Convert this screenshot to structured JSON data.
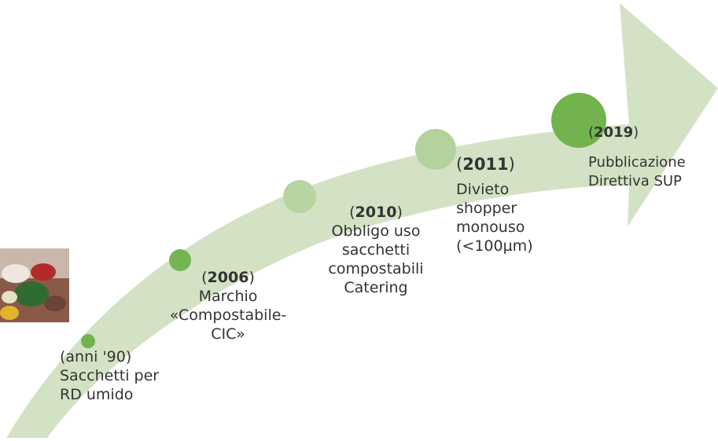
{
  "colors": {
    "arrow_fill": "#d3e2c4",
    "dot_dark": "#72b34e",
    "dot_mid": "#8cc068",
    "dot_light": "#b7d4a1",
    "text": "#333333"
  },
  "milestones": [
    {
      "year_open": "(anni '90)",
      "year": "",
      "year_close": "",
      "lines": [
        "Sacchetti per",
        "RD umido"
      ]
    },
    {
      "year_open": "(",
      "year": "2006",
      "year_close": ")",
      "lines": [
        "Marchio",
        "«Compostabile-",
        "CIC»"
      ]
    },
    {
      "year_open": "(",
      "year": "2010",
      "year_close": ")",
      "lines": [
        "Obbligo uso",
        "sacchetti",
        "compostabili",
        "Catering"
      ]
    },
    {
      "year_open": "(",
      "year": "2011",
      "year_close": ")",
      "lines": [
        "Divieto",
        "shopper",
        "monouso",
        "(<100µm)"
      ]
    },
    {
      "year_open": "(",
      "year": "2019",
      "year_close": ")",
      "lines": [
        "Pubblicazione",
        "Direttiva SUP"
      ]
    }
  ],
  "photo": {
    "icon": "food-photo-icon"
  }
}
